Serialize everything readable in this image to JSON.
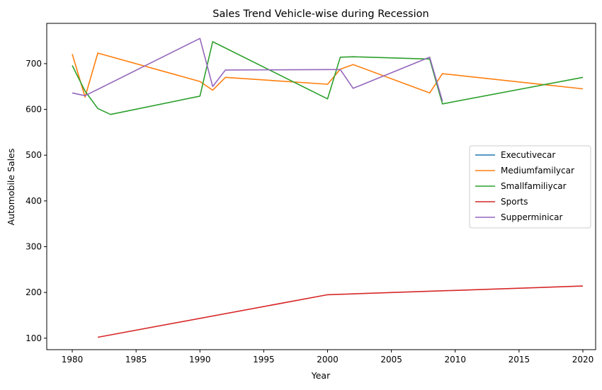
{
  "chart_data": {
    "type": "line",
    "title": "Sales Trend Vehicle-wise during Recession",
    "xlabel": "Year",
    "ylabel": "Automobile Sales",
    "xlim": [
      1978,
      2021
    ],
    "ylim": [
      75,
      788
    ],
    "xticks": [
      1980,
      1985,
      1990,
      1995,
      2000,
      2005,
      2010,
      2015,
      2020
    ],
    "yticks": [
      100,
      200,
      300,
      400,
      500,
      600,
      700
    ],
    "grid": false,
    "legend_position": "center-right",
    "series": [
      {
        "name": "Executivecar",
        "color": "#1f77b4",
        "points": []
      },
      {
        "name": "Mediumfamilycar",
        "color": "#ff7f0e",
        "points": [
          [
            1980,
            721
          ],
          [
            1981,
            627
          ],
          [
            1982,
            723
          ],
          [
            1990,
            661
          ],
          [
            1991,
            642
          ],
          [
            1992,
            670
          ],
          [
            2000,
            655
          ],
          [
            2001,
            688
          ],
          [
            2002,
            698
          ],
          [
            2008,
            636
          ],
          [
            2009,
            678
          ],
          [
            2020,
            645
          ]
        ]
      },
      {
        "name": "Smallfamiliycar",
        "color": "#2ca02c",
        "points": [
          [
            1980,
            696
          ],
          [
            1981,
            640
          ],
          [
            1982,
            602
          ],
          [
            1983,
            589
          ],
          [
            1990,
            629
          ],
          [
            1991,
            748
          ],
          [
            2000,
            623
          ],
          [
            2001,
            714
          ],
          [
            2002,
            715
          ],
          [
            2008,
            710
          ],
          [
            2009,
            612
          ],
          [
            2020,
            670
          ]
        ]
      },
      {
        "name": "Sports",
        "color": "#d62728",
        "points": [
          [
            1982,
            102
          ],
          [
            2000,
            195
          ],
          [
            2020,
            214
          ]
        ]
      },
      {
        "name": "Supperminicar",
        "color": "#9467bd",
        "points": [
          [
            1980,
            636
          ],
          [
            1981,
            630
          ],
          [
            1990,
            755
          ],
          [
            1991,
            650
          ],
          [
            1992,
            686
          ],
          [
            2000,
            687
          ],
          [
            2001,
            687
          ],
          [
            2002,
            646
          ],
          [
            2008,
            714
          ],
          [
            2009,
            618
          ]
        ]
      }
    ]
  }
}
